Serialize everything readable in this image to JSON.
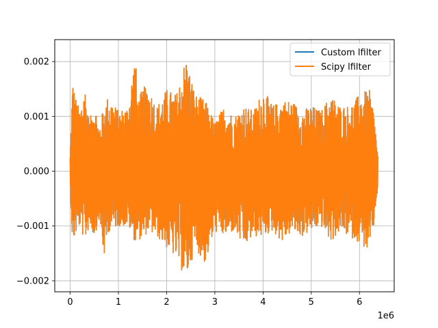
{
  "chart_data": {
    "type": "line",
    "title": "",
    "xlabel": "",
    "ylabel": "",
    "x_offset_label": "1e6",
    "xlim": [
      -0.32,
      6.72
    ],
    "ylim": [
      -0.0022,
      0.0024
    ],
    "xticks": [
      0,
      1,
      2,
      3,
      4,
      5,
      6
    ],
    "xtick_labels": [
      "0",
      "1",
      "2",
      "3",
      "4",
      "5",
      "6"
    ],
    "yticks": [
      -0.002,
      -0.001,
      0.0,
      0.001,
      0.002
    ],
    "ytick_labels": [
      "−0.002",
      "−0.001",
      "0.000",
      "0.001",
      "0.002"
    ],
    "grid": true,
    "legend_position": "top-right",
    "x_data_range": [
      0,
      6.38
    ],
    "series": [
      {
        "name": "Custom lfilter",
        "color": "#1f77b4"
      },
      {
        "name": "Scipy lfilter",
        "color": "#ff7f0e"
      }
    ],
    "envelope": {
      "x": [
        0.0,
        0.05,
        0.1,
        0.2,
        0.3,
        0.4,
        0.5,
        0.6,
        0.7,
        0.8,
        1.0,
        1.2,
        1.35,
        1.4,
        1.5,
        1.6,
        1.8,
        2.0,
        2.2,
        2.4,
        2.6,
        2.8,
        3.0,
        3.2,
        3.4,
        3.6,
        3.8,
        4.0,
        4.2,
        4.4,
        4.6,
        4.8,
        5.0,
        5.2,
        5.4,
        5.6,
        5.8,
        6.0,
        6.2,
        6.3,
        6.38
      ],
      "upper": [
        0.0003,
        0.0017,
        0.0014,
        0.0011,
        0.0016,
        0.0009,
        0.0013,
        0.0008,
        0.0012,
        0.0014,
        0.0011,
        0.0012,
        0.0022,
        0.0013,
        0.0015,
        0.0016,
        0.0012,
        0.0015,
        0.0014,
        0.0021,
        0.0014,
        0.0013,
        0.0009,
        0.0012,
        0.001,
        0.0012,
        0.0011,
        0.0015,
        0.0012,
        0.0013,
        0.0013,
        0.0011,
        0.0012,
        0.0011,
        0.0014,
        0.0012,
        0.0012,
        0.0014,
        0.0015,
        0.0011,
        0.0003
      ],
      "lower": [
        -0.0003,
        -0.0014,
        -0.0012,
        -0.001,
        -0.0013,
        -0.001,
        -0.0012,
        -0.0009,
        -0.0016,
        -0.0011,
        -0.001,
        -0.001,
        -0.0013,
        -0.0012,
        -0.0013,
        -0.0011,
        -0.0012,
        -0.0014,
        -0.0016,
        -0.002,
        -0.0014,
        -0.0017,
        -0.0011,
        -0.0012,
        -0.0011,
        -0.0014,
        -0.0012,
        -0.0012,
        -0.0011,
        -0.0013,
        -0.0011,
        -0.0012,
        -0.0011,
        -0.001,
        -0.0013,
        -0.0011,
        -0.0012,
        -0.0013,
        -0.0015,
        -0.001,
        -0.0003
      ]
    }
  }
}
